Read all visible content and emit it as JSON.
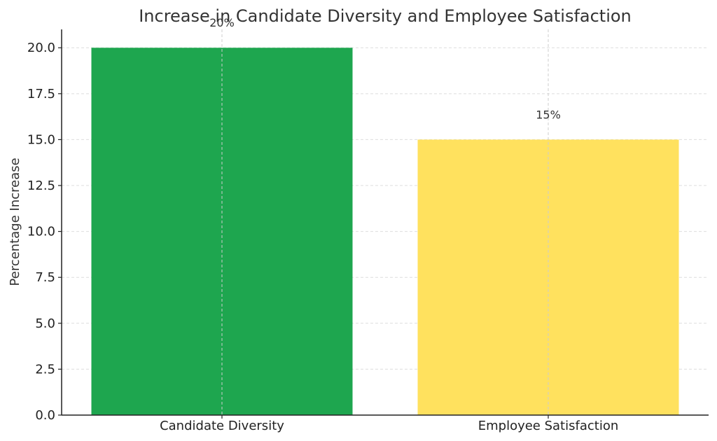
{
  "chart_data": {
    "type": "bar",
    "title": "Increase in Candidate Diversity and Employee Satisfaction",
    "ylabel": "Percentage Increase",
    "xlabel": "",
    "categories": [
      "Candidate Diversity",
      "Employee Satisfaction"
    ],
    "values": [
      20,
      15
    ],
    "value_labels": [
      "20%",
      "15%"
    ],
    "colors": [
      "#1ea64f",
      "#ffe15e"
    ],
    "ylim": [
      0,
      21
    ],
    "yticks": [
      0.0,
      2.5,
      5.0,
      7.5,
      10.0,
      12.5,
      15.0,
      17.5,
      20.0
    ],
    "ytick_labels": [
      "0.0",
      "2.5",
      "5.0",
      "7.5",
      "10.0",
      "12.5",
      "15.0",
      "17.5",
      "20.0"
    ],
    "grid": true
  }
}
